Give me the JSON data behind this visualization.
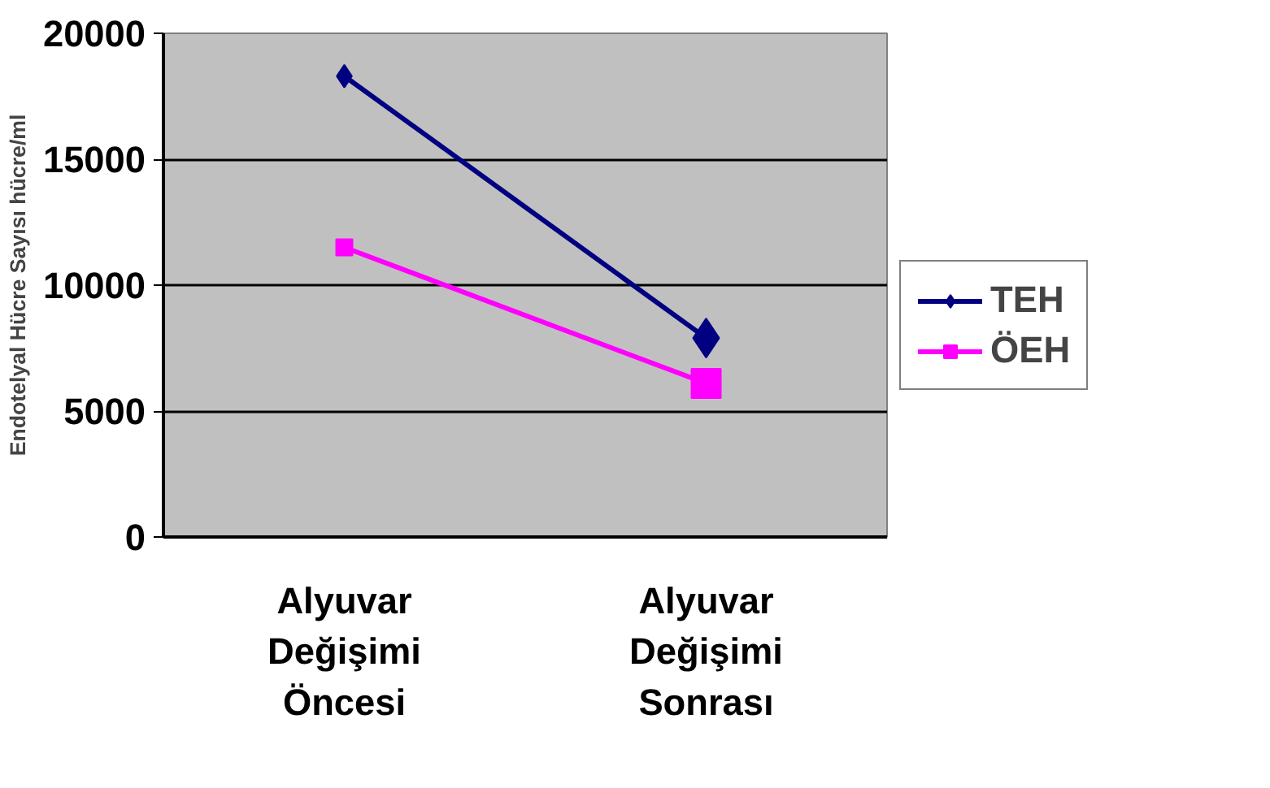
{
  "chart_data": {
    "type": "line",
    "ylabel": "Endotelyal Hücre Sayısı hücre/ml",
    "categories": [
      "Alyuvar\nDeğişimi\nÖncesi",
      "Alyuvar\nDeğişimi\nSonrası"
    ],
    "series": [
      {
        "name": "TEH",
        "color": "#000080",
        "values": [
          18300,
          7900
        ],
        "marker": "diamond"
      },
      {
        "name": "ÖEH",
        "color": "#ff00ff",
        "values": [
          11500,
          6100
        ],
        "marker": "square"
      }
    ],
    "ylim": [
      0,
      20000
    ],
    "yticks": [
      0,
      5000,
      10000,
      15000,
      20000
    ],
    "grid": "y",
    "legend": "right",
    "line_style": "solid"
  }
}
